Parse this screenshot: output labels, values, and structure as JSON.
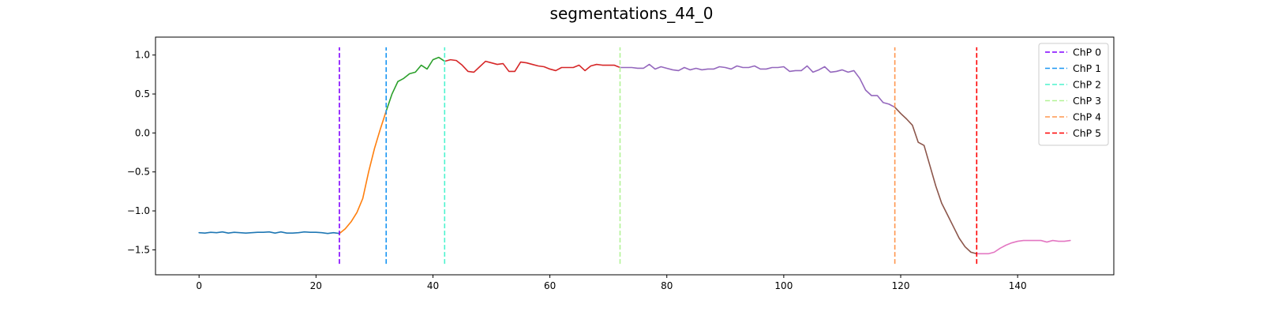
{
  "chart_data": {
    "type": "line",
    "title": "segmentations_44_0",
    "xlabel": "",
    "ylabel": "",
    "xlim": [
      -7.45,
      156.45
    ],
    "ylim": [
      -1.82,
      1.23
    ],
    "xticks": [
      0,
      20,
      40,
      60,
      80,
      100,
      120,
      140
    ],
    "xtick_labels": [
      "0",
      "20",
      "40",
      "60",
      "80",
      "100",
      "120",
      "140"
    ],
    "yticks": [
      -1.5,
      -1.0,
      -0.5,
      0.0,
      0.5,
      1.0
    ],
    "ytick_labels": [
      "−1.5",
      "−1.0",
      "−0.5",
      "0.0",
      "0.5",
      "1.0"
    ],
    "grid": false,
    "legend_position": "top-right",
    "series": [
      {
        "color": "#1f77b4",
        "x": [
          0,
          1,
          2,
          3,
          4,
          5,
          6,
          7,
          8,
          9,
          10,
          11,
          12,
          13,
          14,
          15,
          16,
          17,
          18,
          19,
          20,
          21,
          22,
          23,
          24
        ],
        "y": [
          -1.28,
          -1.285,
          -1.275,
          -1.28,
          -1.27,
          -1.285,
          -1.275,
          -1.28,
          -1.285,
          -1.28,
          -1.275,
          -1.275,
          -1.27,
          -1.285,
          -1.27,
          -1.285,
          -1.285,
          -1.28,
          -1.27,
          -1.275,
          -1.275,
          -1.28,
          -1.29,
          -1.28,
          -1.29
        ]
      },
      {
        "color": "#ff7f0e",
        "x": [
          24,
          25,
          26,
          27,
          28,
          29,
          30,
          31,
          32
        ],
        "y": [
          -1.29,
          -1.23,
          -1.14,
          -1.02,
          -0.84,
          -0.5,
          -0.2,
          0.05,
          0.28
        ]
      },
      {
        "color": "#2ca02c",
        "x": [
          32,
          33,
          34,
          35,
          36,
          37,
          38,
          39,
          40,
          41,
          42
        ],
        "y": [
          0.28,
          0.5,
          0.66,
          0.7,
          0.76,
          0.78,
          0.87,
          0.82,
          0.94,
          0.97,
          0.92
        ]
      },
      {
        "color": "#d62728",
        "x": [
          42,
          43,
          44,
          45,
          46,
          47,
          48,
          49,
          50,
          51,
          52,
          53,
          54,
          55,
          56,
          57,
          58,
          59,
          60,
          61,
          62,
          63,
          64,
          65,
          66,
          67,
          68,
          69,
          70,
          71,
          72
        ],
        "y": [
          0.92,
          0.94,
          0.93,
          0.87,
          0.79,
          0.78,
          0.85,
          0.92,
          0.9,
          0.88,
          0.89,
          0.79,
          0.79,
          0.91,
          0.9,
          0.88,
          0.86,
          0.85,
          0.82,
          0.8,
          0.84,
          0.84,
          0.84,
          0.87,
          0.8,
          0.86,
          0.88,
          0.87,
          0.87,
          0.87,
          0.84
        ]
      },
      {
        "color": "#9467bd",
        "x": [
          72,
          73,
          74,
          75,
          76,
          77,
          78,
          79,
          80,
          81,
          82,
          83,
          84,
          85,
          86,
          87,
          88,
          89,
          90,
          91,
          92,
          93,
          94,
          95,
          96,
          97,
          98,
          99,
          100,
          101,
          102,
          103,
          104,
          105,
          106,
          107,
          108,
          109,
          110,
          111,
          112,
          113,
          114,
          115,
          116,
          117,
          118,
          119
        ],
        "y": [
          0.84,
          0.84,
          0.84,
          0.83,
          0.83,
          0.88,
          0.82,
          0.85,
          0.83,
          0.81,
          0.8,
          0.84,
          0.81,
          0.83,
          0.81,
          0.82,
          0.82,
          0.85,
          0.84,
          0.82,
          0.86,
          0.84,
          0.84,
          0.86,
          0.82,
          0.82,
          0.84,
          0.84,
          0.85,
          0.79,
          0.8,
          0.8,
          0.86,
          0.78,
          0.81,
          0.85,
          0.78,
          0.79,
          0.81,
          0.78,
          0.8,
          0.7,
          0.55,
          0.48,
          0.48,
          0.39,
          0.37,
          0.33
        ]
      },
      {
        "color": "#8c564b",
        "x": [
          119,
          120,
          121,
          122,
          123,
          124,
          125,
          126,
          127,
          128,
          129,
          130,
          131,
          132,
          133
        ],
        "y": [
          0.33,
          0.25,
          0.18,
          0.1,
          -0.12,
          -0.16,
          -0.42,
          -0.68,
          -0.9,
          -1.05,
          -1.2,
          -1.35,
          -1.46,
          -1.53,
          -1.55
        ]
      },
      {
        "color": "#e377c2",
        "x": [
          133,
          134,
          135,
          136,
          137,
          138,
          139,
          140,
          141,
          142,
          143,
          144,
          145,
          146,
          147,
          148,
          149
        ],
        "y": [
          -1.55,
          -1.55,
          -1.55,
          -1.53,
          -1.48,
          -1.44,
          -1.41,
          -1.39,
          -1.38,
          -1.38,
          -1.38,
          -1.38,
          -1.4,
          -1.38,
          -1.39,
          -1.39,
          -1.38
        ]
      }
    ],
    "changepoints": [
      {
        "label": "ChP 0",
        "x": 24,
        "color": "#8000ff"
      },
      {
        "label": "ChP 1",
        "x": 32,
        "color": "#1996f3"
      },
      {
        "label": "ChP 2",
        "x": 42,
        "color": "#4df3ce"
      },
      {
        "label": "ChP 3",
        "x": 72,
        "color": "#b2f396"
      },
      {
        "label": "ChP 4",
        "x": 119,
        "color": "#ff964f"
      },
      {
        "label": "ChP 5",
        "x": 133,
        "color": "#ff0000"
      }
    ],
    "changepoint_y_range": [
      -1.68,
      1.1
    ]
  }
}
